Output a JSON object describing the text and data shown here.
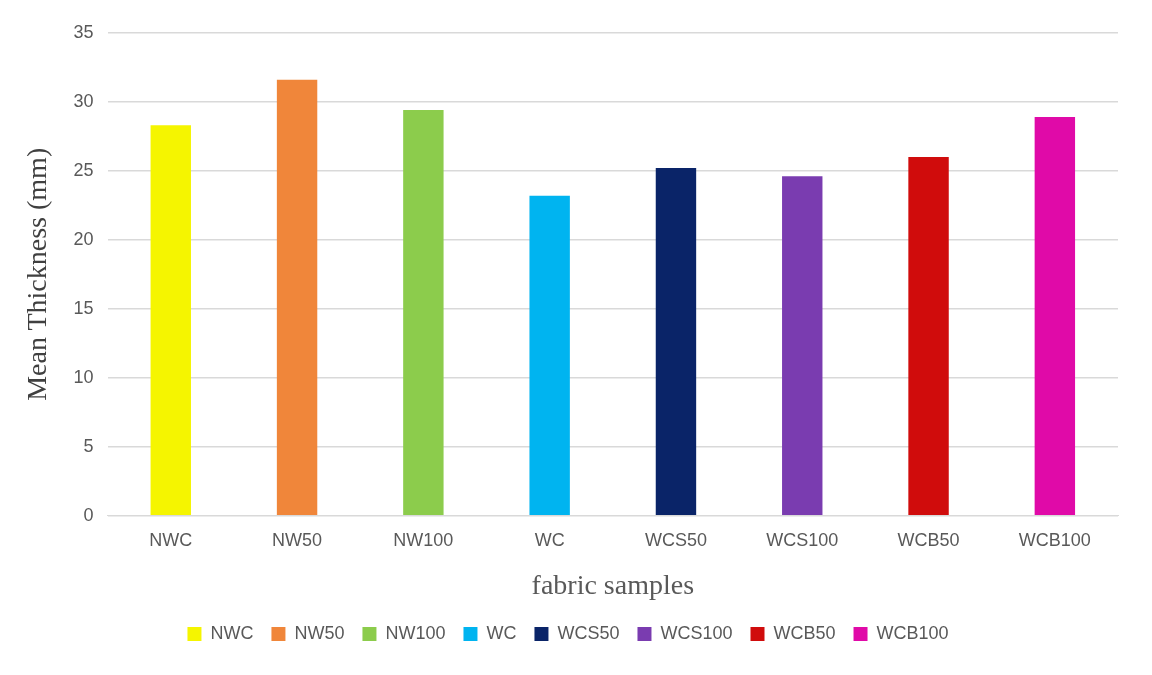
{
  "chart_data": {
    "type": "bar",
    "xlabel": "fabric samples",
    "ylabel": "Mean Thickness (mm)",
    "categories": [
      "NWC",
      "NW50",
      "NW100",
      "WC",
      "WCS50",
      "WCS100",
      "WCB50",
      "WCB100"
    ],
    "series": [
      {
        "name": "NWC",
        "color": "#f5f500",
        "values": [
          28.3,
          null,
          null,
          null,
          null,
          null,
          null,
          null
        ]
      },
      {
        "name": "NW50",
        "color": "#f0863a",
        "values": [
          null,
          31.6,
          null,
          null,
          null,
          null,
          null,
          null
        ]
      },
      {
        "name": "NW100",
        "color": "#8ccc4c",
        "values": [
          null,
          null,
          29.4,
          null,
          null,
          null,
          null,
          null
        ]
      },
      {
        "name": "WC",
        "color": "#00b4f0",
        "values": [
          null,
          null,
          null,
          23.2,
          null,
          null,
          null,
          null
        ]
      },
      {
        "name": "WCS50",
        "color": "#0a2468",
        "values": [
          null,
          null,
          null,
          null,
          25.2,
          null,
          null,
          null
        ]
      },
      {
        "name": "WCS100",
        "color": "#7a3cb0",
        "values": [
          null,
          null,
          null,
          null,
          null,
          24.6,
          null,
          null
        ]
      },
      {
        "name": "WCB50",
        "color": "#d00c0c",
        "values": [
          null,
          null,
          null,
          null,
          null,
          null,
          26.0,
          null
        ]
      },
      {
        "name": "WCB100",
        "color": "#e00aa8",
        "values": [
          null,
          null,
          null,
          null,
          null,
          null,
          null,
          28.9
        ]
      }
    ],
    "ylim": [
      0,
      35
    ],
    "yticks": [
      0,
      5,
      10,
      15,
      20,
      25,
      30,
      35
    ],
    "grid": "y",
    "legend": "bottom"
  }
}
